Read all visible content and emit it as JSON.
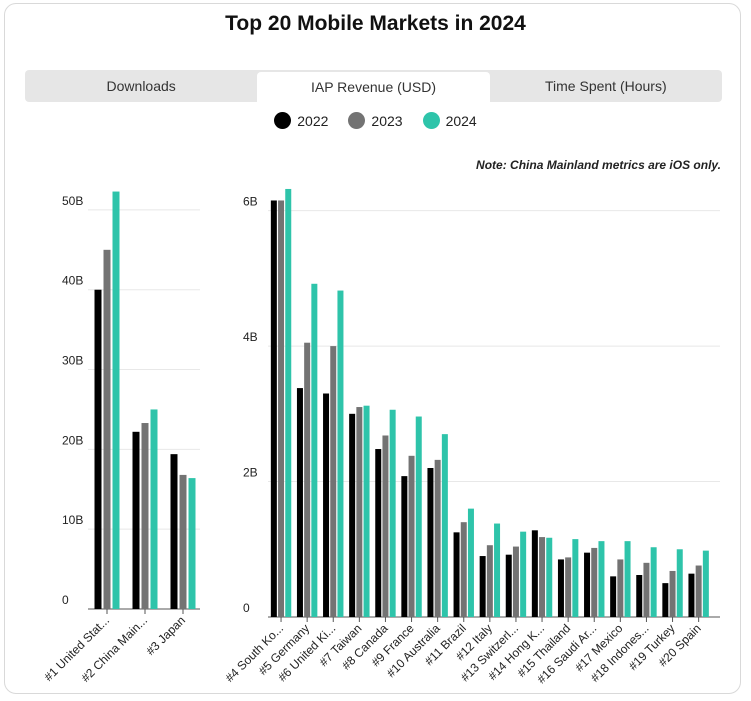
{
  "title": "Top 20 Mobile Markets in 2024",
  "tabs": [
    {
      "label": "Downloads",
      "active": false
    },
    {
      "label": "IAP Revenue (USD)",
      "active": true
    },
    {
      "label": "Time Spent (Hours)",
      "active": false
    }
  ],
  "note": "Note: China Mainland metrics are iOS only.",
  "colors": {
    "2022": "#000000",
    "2023": "#737373",
    "2024": "#2ec4aa"
  },
  "chart_data": [
    {
      "type": "bar",
      "categories": [
        "#1 United Stat...",
        "#2 China Main...",
        "#3 Japan"
      ],
      "series": [
        {
          "name": "2022",
          "values": [
            40,
            22.2,
            19.4
          ]
        },
        {
          "name": "2023",
          "values": [
            45,
            23.3,
            16.8
          ]
        },
        {
          "name": "2024",
          "values": [
            52.3,
            25,
            16.4
          ]
        }
      ],
      "ylim": [
        0,
        55
      ],
      "yticks": [
        0,
        10,
        20,
        30,
        40,
        50
      ],
      "ytick_labels": [
        "0",
        "10B",
        "20B",
        "30B",
        "40B",
        "50B"
      ],
      "grid": true
    },
    {
      "type": "bar",
      "categories": [
        "#4 South Ko...",
        "#5 Germany",
        "#6 United Ki...",
        "#7 Taiwan",
        "#8 Canada",
        "#9 France",
        "#10 Australia",
        "#11 Brazil",
        "#12 Italy",
        "#13 Switzerl...",
        "#14 Hong K...",
        "#15 Thailand",
        "#16 Saudi Ar...",
        "#17 Mexico",
        "#18 Indones...",
        "#19 Turkey",
        "#20 Spain"
      ],
      "series": [
        {
          "name": "2022",
          "values": [
            6.15,
            3.38,
            3.3,
            3.0,
            2.48,
            2.08,
            2.2,
            1.25,
            0.9,
            0.92,
            1.28,
            0.85,
            0.95,
            0.6,
            0.62,
            0.5,
            0.64
          ]
        },
        {
          "name": "2023",
          "values": [
            6.15,
            4.05,
            4.0,
            3.1,
            2.68,
            2.38,
            2.32,
            1.4,
            1.06,
            1.04,
            1.18,
            0.88,
            1.02,
            0.85,
            0.8,
            0.68,
            0.76
          ]
        },
        {
          "name": "2024",
          "values": [
            6.32,
            4.92,
            4.82,
            3.12,
            3.06,
            2.96,
            2.7,
            1.6,
            1.38,
            1.26,
            1.17,
            1.15,
            1.12,
            1.12,
            1.03,
            1.0,
            0.98
          ]
        }
      ],
      "ylim": [
        0,
        6.6
      ],
      "yticks": [
        0,
        2,
        4,
        6
      ],
      "ytick_labels": [
        "0",
        "2B",
        "4B",
        "6B"
      ],
      "grid": true
    }
  ]
}
